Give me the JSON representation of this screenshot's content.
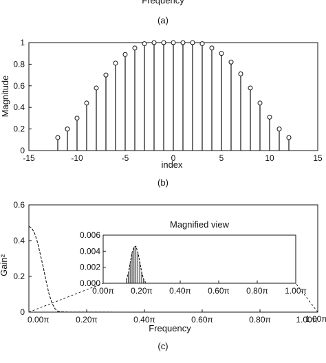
{
  "captions": {
    "a": "(a)",
    "b": "(b)",
    "c": "(c)"
  },
  "top_fragment": "Frequency",
  "chart_data": [
    {
      "type": "stem",
      "xlabel": "index",
      "ylabel": "Magnitude",
      "xlim": [
        -15,
        15
      ],
      "ylim": [
        0,
        1
      ],
      "xticks": [
        "-15",
        "-10",
        "-5",
        "0",
        "5",
        "10",
        "15"
      ],
      "yticks": [
        "0",
        "0.2",
        "0.4",
        "0.6",
        "0.8",
        "1"
      ],
      "x": [
        -12,
        -11,
        -10,
        -9,
        -8,
        -7,
        -6,
        -5,
        -4,
        -3,
        -2,
        -1,
        0,
        1,
        2,
        3,
        4,
        5,
        6,
        7,
        8,
        9,
        10,
        11,
        12
      ],
      "values": [
        0.12,
        0.2,
        0.3,
        0.44,
        0.58,
        0.7,
        0.81,
        0.89,
        0.95,
        0.99,
        1.0,
        1.0,
        1.0,
        1.0,
        1.0,
        0.99,
        0.95,
        0.9,
        0.82,
        0.71,
        0.58,
        0.44,
        0.31,
        0.2,
        0.12
      ]
    },
    {
      "type": "line",
      "xlabel": "Frequency",
      "ylabel": "Gain²",
      "xlim": [
        0,
        1
      ],
      "ylim": [
        0,
        0.6
      ],
      "xticks": [
        "0.00π",
        "0.20π",
        "0.40π",
        "0.60π",
        "0.80π",
        "1.00π"
      ],
      "yticks": [
        "0",
        "0.2",
        "0.4",
        "0.6"
      ],
      "series": [
        {
          "x": [
            0,
            0.01,
            0.02,
            0.03,
            0.04,
            0.05,
            0.06,
            0.07,
            0.08,
            0.09,
            0.1,
            0.11,
            0.12,
            0.14,
            0.16,
            0.2,
            0.3,
            0.5,
            0.7,
            0.9,
            1.0
          ],
          "values": [
            0.48,
            0.47,
            0.44,
            0.39,
            0.32,
            0.25,
            0.17,
            0.1,
            0.05,
            0.02,
            0.005,
            0.002,
            0.001,
            0.0005,
            0.0003,
            0.0002,
            0.0001,
            0.0001,
            0.0001,
            0.0001,
            0.0001
          ]
        }
      ],
      "inset": {
        "title": "Magnified view",
        "xlim": [
          0,
          1
        ],
        "ylim": [
          0,
          0.006
        ],
        "xticks": [
          "0.00π",
          "0.20π",
          "0.40π",
          "0.60π",
          "0.80π",
          "1.00π"
        ],
        "yticks": [
          "0.000",
          "0.002",
          "0.004",
          "0.006"
        ],
        "x": [
          0.12,
          0.13,
          0.14,
          0.15,
          0.16,
          0.17,
          0.18,
          0.19,
          0.2,
          0.21,
          0.22
        ],
        "values": [
          0.0004,
          0.0012,
          0.0025,
          0.0038,
          0.0045,
          0.0046,
          0.0039,
          0.0027,
          0.0014,
          0.0005,
          0.0001
        ]
      },
      "corner_label": "1.00π"
    }
  ]
}
